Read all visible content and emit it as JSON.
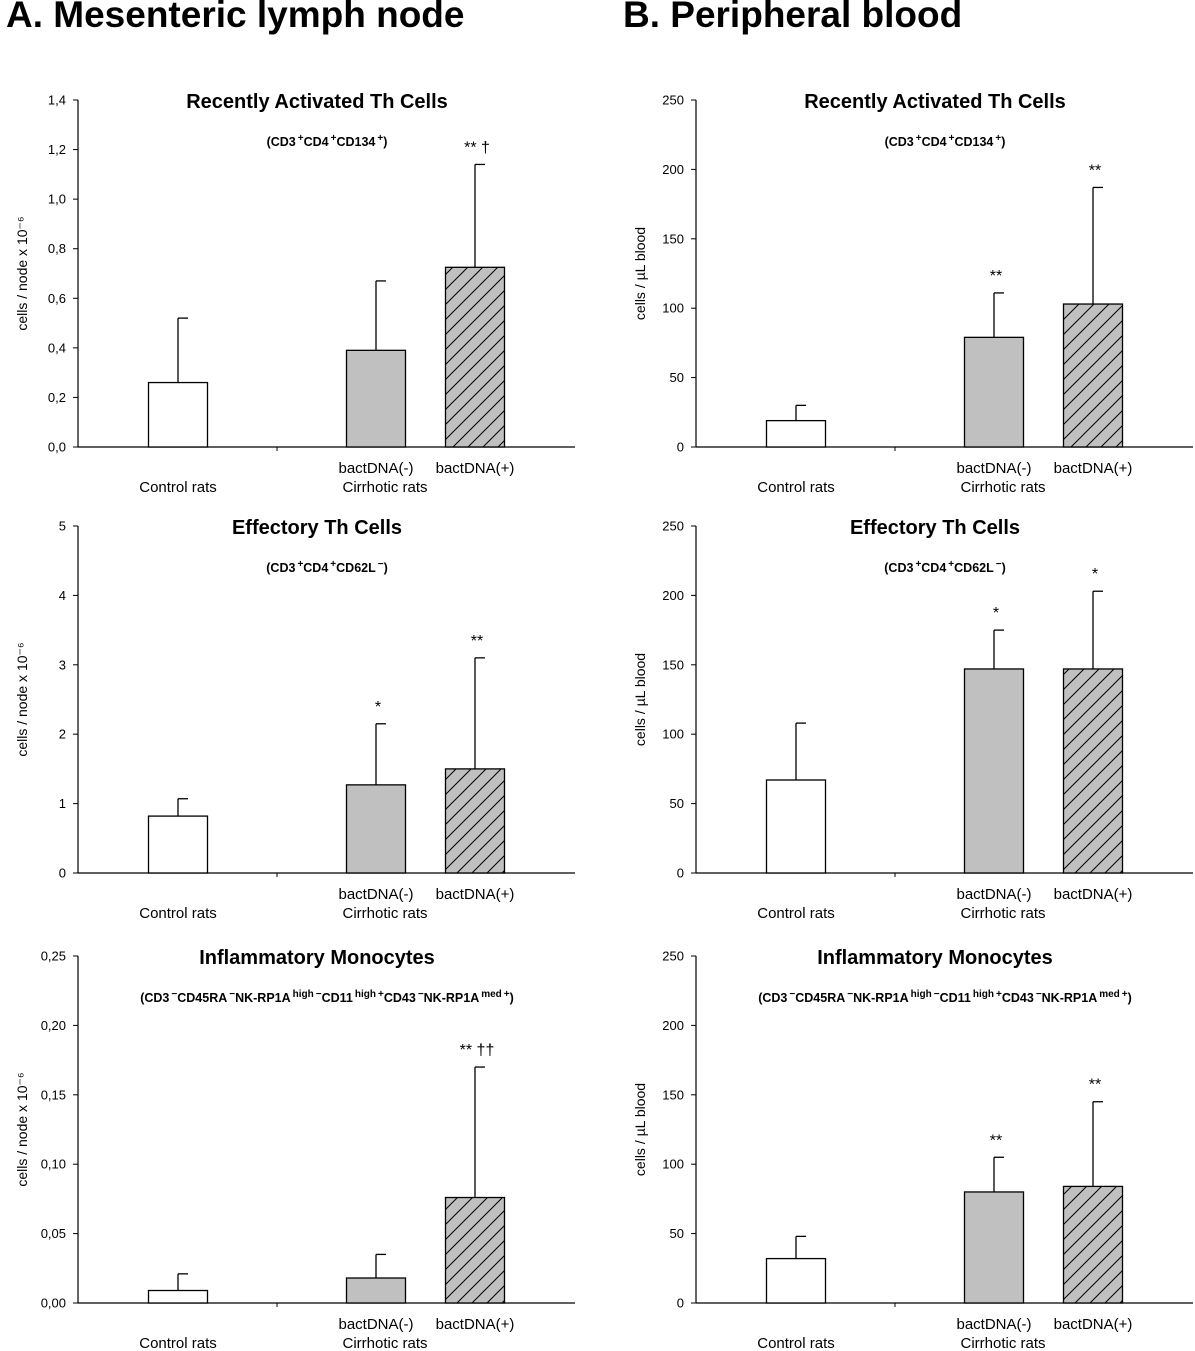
{
  "section_titles": {
    "a": "A. Mesenteric lymph node",
    "b": "B. Peripheral blood"
  },
  "colors": {
    "control": "#ffffff",
    "bactdna_neg": "#c0c0c0",
    "bactdna_pos": "#c0c0c0",
    "axis": "#000000"
  },
  "chart_data": [
    {
      "type": "bar",
      "panel": "A1",
      "title": "Recently Activated Th Cells",
      "subtitle": "(CD3+CD4+CD134+)",
      "ylabel": "cells / node x 10⁻⁶",
      "ylim": [
        0,
        1.4
      ],
      "yticks": [
        "0,0",
        "0,2",
        "0,4",
        "0,6",
        "0,8",
        "1,0",
        "1,2",
        "1,4"
      ],
      "categories": [
        "Control rats",
        "bactDNA(-)",
        "bactDNA(+)"
      ],
      "group_label": "Cirrhotic rats",
      "values": [
        0.26,
        0.39,
        0.725
      ],
      "errors": [
        0.26,
        0.28,
        0.415
      ],
      "annotations": [
        "",
        "",
        "**  †"
      ]
    },
    {
      "type": "bar",
      "panel": "B1",
      "title": "Recently Activated Th Cells",
      "subtitle": "(CD3+CD4+CD134+)",
      "ylabel": "cells / µL blood",
      "ylim": [
        0,
        250
      ],
      "yticks": [
        "0",
        "50",
        "100",
        "150",
        "200",
        "250"
      ],
      "categories": [
        "Control rats",
        "bactDNA(-)",
        "bactDNA(+)"
      ],
      "group_label": "Cirrhotic rats",
      "values": [
        19,
        79,
        103
      ],
      "errors": [
        11,
        32,
        84
      ],
      "annotations": [
        "",
        "**",
        "**"
      ]
    },
    {
      "type": "bar",
      "panel": "A2",
      "title": "Effectory Th Cells",
      "subtitle": "(CD3+CD4+CD62L-)",
      "ylabel": "cells / node x 10⁻⁶",
      "ylim": [
        0,
        5
      ],
      "yticks": [
        "0",
        "1",
        "2",
        "3",
        "4",
        "5"
      ],
      "categories": [
        "Control rats",
        "bactDNA(-)",
        "bactDNA(+)"
      ],
      "group_label": "Cirrhotic rats",
      "values": [
        0.82,
        1.27,
        1.5
      ],
      "errors": [
        0.25,
        0.88,
        1.6
      ],
      "annotations": [
        "",
        "*",
        "**"
      ]
    },
    {
      "type": "bar",
      "panel": "B2",
      "title": "Effectory Th Cells",
      "subtitle": "(CD3+CD4+CD62L-)",
      "ylabel": "cells / µL blood",
      "ylim": [
        0,
        250
      ],
      "yticks": [
        "0",
        "50",
        "100",
        "150",
        "200",
        "250"
      ],
      "categories": [
        "Control rats",
        "bactDNA(-)",
        "bactDNA(+)"
      ],
      "group_label": "Cirrhotic rats",
      "values": [
        67,
        147,
        147
      ],
      "errors": [
        41,
        28,
        56
      ],
      "annotations": [
        "",
        "*",
        "*"
      ]
    },
    {
      "type": "bar",
      "panel": "A3",
      "title": "Inflammatory Monocytes",
      "subtitle": "(CD3-CD45RA-NK-RP1A high-CD11b high+CD43-NK-RP1A med+)",
      "ylabel": "cells / node x 10⁻⁶",
      "ylim": [
        0,
        0.25
      ],
      "yticks": [
        "0,00",
        "0,05",
        "0,10",
        "0,15",
        "0,20",
        "0,25"
      ],
      "categories": [
        "Control rats",
        "bactDNA(-)",
        "bactDNA(+)"
      ],
      "group_label": "Cirrhotic rats",
      "values": [
        0.009,
        0.018,
        0.076
      ],
      "errors": [
        0.012,
        0.017,
        0.094
      ],
      "annotations": [
        "",
        "",
        "**  ††"
      ]
    },
    {
      "type": "bar",
      "panel": "B3",
      "title": "Inflammatory Monocytes",
      "subtitle": "(CD3-CD45RA-NK-RP1A high-CD11b high+CD43-NK-RP1A med+)",
      "ylabel": "cells / µL blood",
      "ylim": [
        0,
        250
      ],
      "yticks": [
        "0",
        "50",
        "100",
        "150",
        "200",
        "250"
      ],
      "categories": [
        "Control rats",
        "bactDNA(-)",
        "bactDNA(+)"
      ],
      "group_label": "Cirrhotic rats",
      "values": [
        32,
        80,
        84
      ],
      "errors": [
        16,
        25,
        61
      ],
      "annotations": [
        "",
        "**",
        "**"
      ]
    }
  ]
}
